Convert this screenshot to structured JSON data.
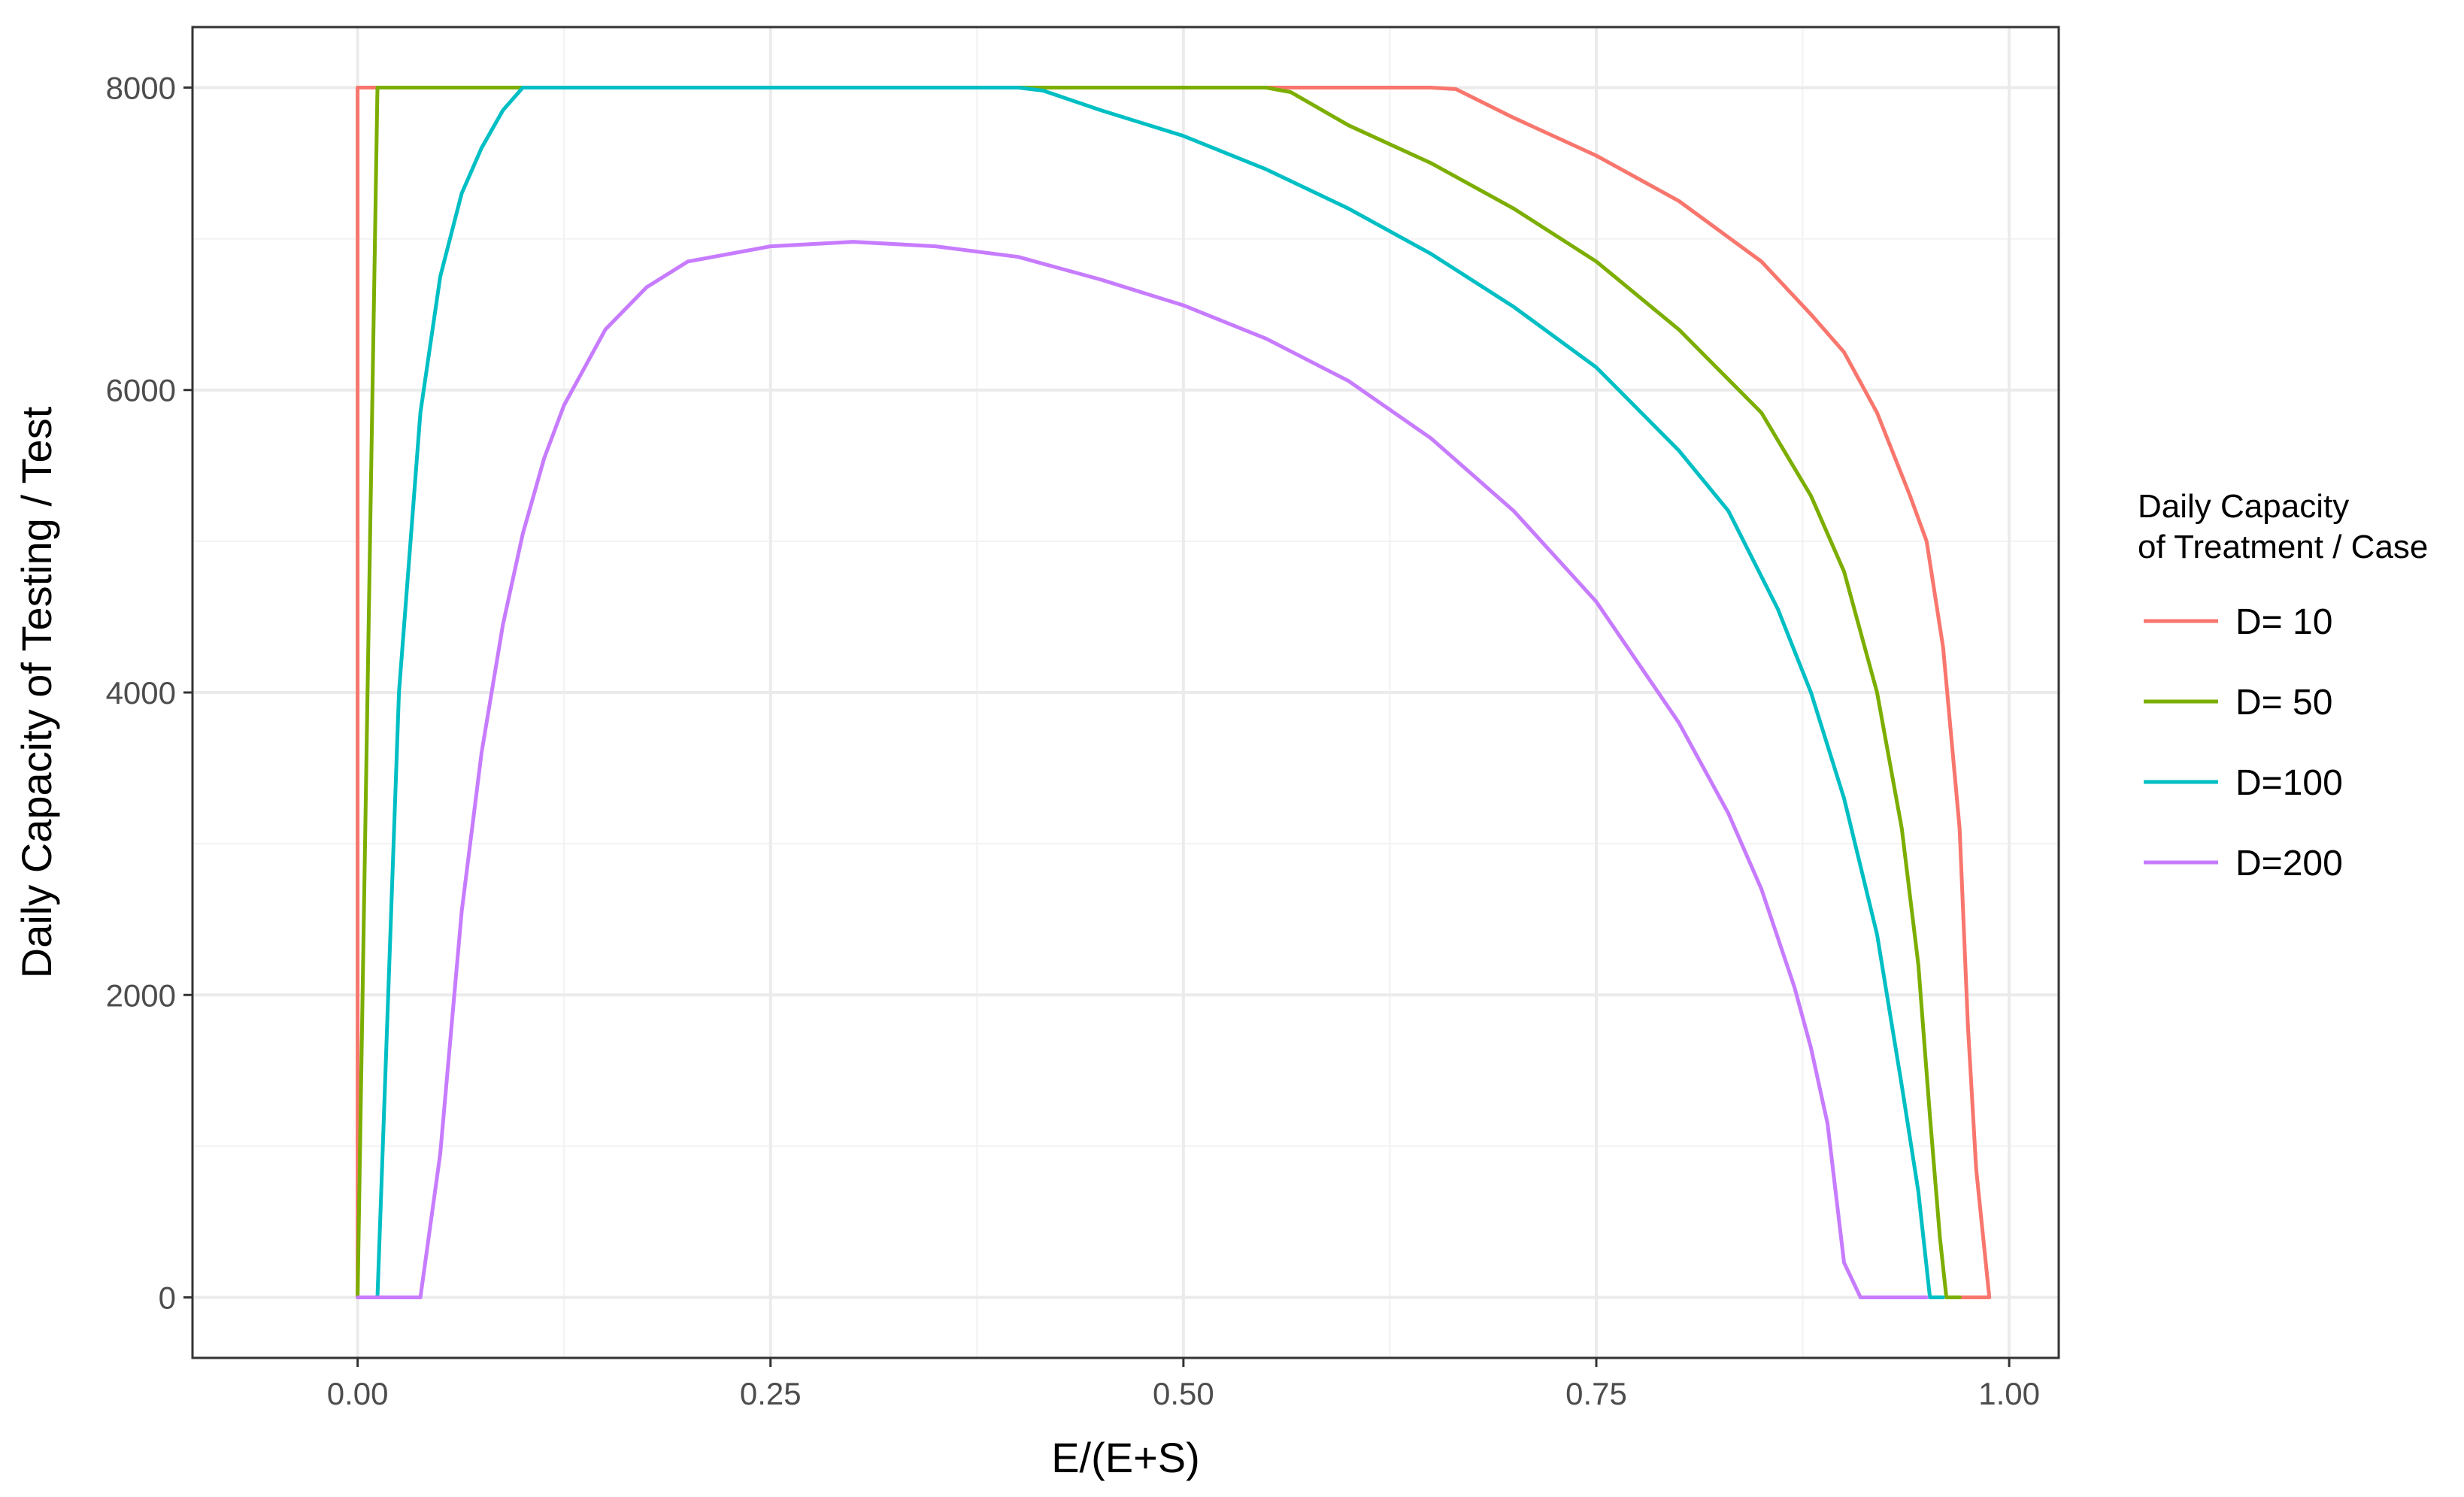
{
  "chart_data": {
    "type": "line",
    "xlabel": "E/(E+S)",
    "ylabel": "Daily Capacity of Testing / Test",
    "xlim": [
      -0.1,
      1.03
    ],
    "ylim": [
      -400,
      8400
    ],
    "x_ticks": [
      0.0,
      0.25,
      0.5,
      0.75,
      1.0
    ],
    "x_tick_labels": [
      "0.00",
      "0.25",
      "0.50",
      "0.75",
      "1.00"
    ],
    "y_ticks": [
      0,
      2000,
      4000,
      6000,
      8000
    ],
    "y_tick_labels": [
      "0",
      "2000",
      "4000",
      "6000",
      "8000"
    ],
    "grid": true,
    "legend": {
      "title_lines": [
        "Daily Capacity",
        "of Treatment / Case"
      ],
      "placement": "right"
    },
    "series": [
      {
        "name": "D= 10",
        "color": "#f8766d",
        "points": [
          [
            0.0,
            0
          ],
          [
            0.0,
            8000
          ],
          [
            0.05,
            8000
          ],
          [
            0.1,
            8000
          ],
          [
            0.2,
            8000
          ],
          [
            0.3,
            8000
          ],
          [
            0.4,
            8000
          ],
          [
            0.5,
            8000
          ],
          [
            0.6,
            8000
          ],
          [
            0.65,
            8000
          ],
          [
            0.665,
            7990
          ],
          [
            0.7,
            7800
          ],
          [
            0.75,
            7550
          ],
          [
            0.8,
            7250
          ],
          [
            0.85,
            6850
          ],
          [
            0.88,
            6500
          ],
          [
            0.9,
            6250
          ],
          [
            0.92,
            5850
          ],
          [
            0.94,
            5300
          ],
          [
            0.95,
            5000
          ],
          [
            0.96,
            4300
          ],
          [
            0.97,
            3100
          ],
          [
            0.975,
            1800
          ],
          [
            0.98,
            850
          ],
          [
            0.988,
            0
          ],
          [
            0.97,
            0
          ]
        ]
      },
      {
        "name": "D= 50",
        "color": "#7cae00",
        "points": [
          [
            0.0,
            0
          ],
          [
            0.012,
            8000
          ],
          [
            0.05,
            8000
          ],
          [
            0.1,
            8000
          ],
          [
            0.2,
            8000
          ],
          [
            0.3,
            8000
          ],
          [
            0.4,
            8000
          ],
          [
            0.5,
            8000
          ],
          [
            0.55,
            8000
          ],
          [
            0.565,
            7970
          ],
          [
            0.6,
            7750
          ],
          [
            0.65,
            7500
          ],
          [
            0.7,
            7200
          ],
          [
            0.75,
            6850
          ],
          [
            0.8,
            6400
          ],
          [
            0.85,
            5850
          ],
          [
            0.88,
            5300
          ],
          [
            0.9,
            4800
          ],
          [
            0.92,
            4000
          ],
          [
            0.935,
            3100
          ],
          [
            0.945,
            2200
          ],
          [
            0.952,
            1200
          ],
          [
            0.958,
            400
          ],
          [
            0.962,
            0
          ],
          [
            0.97,
            0
          ]
        ]
      },
      {
        "name": "D=100",
        "color": "#00bfc4",
        "points": [
          [
            0.012,
            0
          ],
          [
            0.025,
            4000
          ],
          [
            0.038,
            5850
          ],
          [
            0.05,
            6750
          ],
          [
            0.063,
            7300
          ],
          [
            0.075,
            7600
          ],
          [
            0.088,
            7850
          ],
          [
            0.1,
            8000
          ],
          [
            0.2,
            8000
          ],
          [
            0.3,
            8000
          ],
          [
            0.4,
            8000
          ],
          [
            0.415,
            7980
          ],
          [
            0.45,
            7850
          ],
          [
            0.5,
            7680
          ],
          [
            0.55,
            7460
          ],
          [
            0.6,
            7200
          ],
          [
            0.65,
            6900
          ],
          [
            0.7,
            6550
          ],
          [
            0.75,
            6150
          ],
          [
            0.8,
            5600
          ],
          [
            0.83,
            5200
          ],
          [
            0.86,
            4550
          ],
          [
            0.88,
            4000
          ],
          [
            0.9,
            3300
          ],
          [
            0.92,
            2400
          ],
          [
            0.935,
            1400
          ],
          [
            0.945,
            700
          ],
          [
            0.952,
            0
          ],
          [
            0.96,
            0
          ]
        ]
      },
      {
        "name": "D=200",
        "color": "#c77cff",
        "points": [
          [
            0.0,
            0
          ],
          [
            0.038,
            0
          ],
          [
            0.05,
            950
          ],
          [
            0.063,
            2550
          ],
          [
            0.075,
            3600
          ],
          [
            0.088,
            4450
          ],
          [
            0.1,
            5050
          ],
          [
            0.113,
            5550
          ],
          [
            0.125,
            5900
          ],
          [
            0.15,
            6400
          ],
          [
            0.175,
            6680
          ],
          [
            0.2,
            6850
          ],
          [
            0.25,
            6950
          ],
          [
            0.3,
            6980
          ],
          [
            0.35,
            6950
          ],
          [
            0.4,
            6880
          ],
          [
            0.45,
            6730
          ],
          [
            0.5,
            6560
          ],
          [
            0.55,
            6340
          ],
          [
            0.6,
            6060
          ],
          [
            0.65,
            5680
          ],
          [
            0.7,
            5200
          ],
          [
            0.75,
            4600
          ],
          [
            0.8,
            3800
          ],
          [
            0.83,
            3200
          ],
          [
            0.85,
            2700
          ],
          [
            0.87,
            2050
          ],
          [
            0.88,
            1650
          ],
          [
            0.89,
            1150
          ],
          [
            0.9,
            230
          ],
          [
            0.91,
            0
          ],
          [
            0.95,
            0
          ]
        ]
      }
    ]
  }
}
